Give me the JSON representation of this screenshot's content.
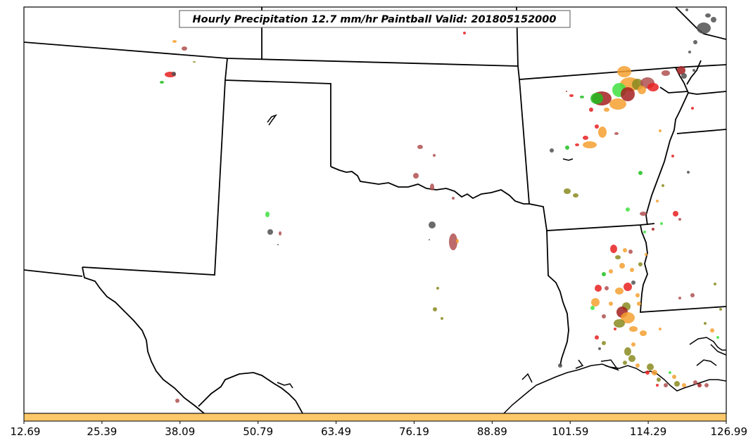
{
  "title": "Hourly Precipitation 12.7 mm/hr Paintball Valid: 201805152000",
  "colorbar": {
    "color": "#fdc86a",
    "ticks": [
      "12.69",
      "25.39",
      "38.09",
      "50.79",
      "63.49",
      "76.19",
      "88.89",
      "101.59",
      "114.29",
      "126.99"
    ]
  },
  "paintball_colors": {
    "orange": "#f5a030",
    "red": "#e82020",
    "green": "#20c020",
    "dark_red": "#a52020",
    "dark_gray": "#505050",
    "olive": "#8a8a20",
    "brown_red": "#b05050",
    "light_green": "#40e040"
  }
}
